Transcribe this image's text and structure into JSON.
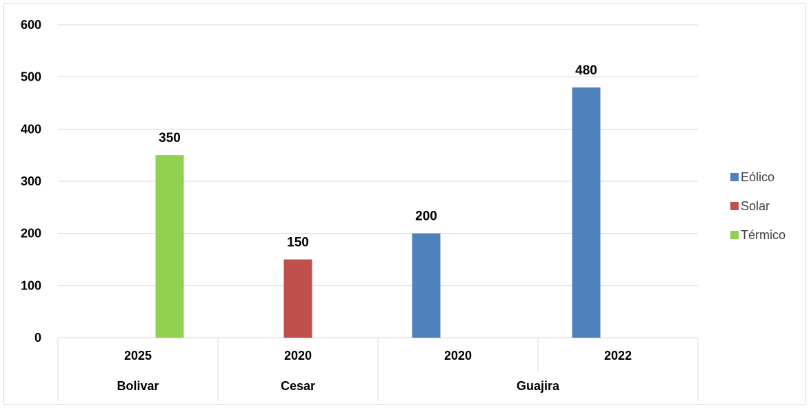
{
  "chart_data": {
    "type": "bar",
    "title": "",
    "xlabel": "",
    "ylabel": "",
    "ylim": [
      0,
      600
    ],
    "yticks": [
      0,
      100,
      200,
      300,
      400,
      500,
      600
    ],
    "grid": true,
    "legend_position": "right",
    "groups": [
      {
        "label": "Bolivar",
        "categories": [
          "2025"
        ]
      },
      {
        "label": "Cesar",
        "categories": [
          "2020"
        ]
      },
      {
        "label": "Guajira",
        "categories": [
          "2020",
          "2022"
        ]
      }
    ],
    "categories": [
      "2025",
      "2020",
      "2020",
      "2022"
    ],
    "series": [
      {
        "name": "Eólico",
        "color": "#4f81bd",
        "values": [
          null,
          null,
          200,
          480
        ]
      },
      {
        "name": "Solar",
        "color": "#c0504d",
        "values": [
          null,
          150,
          null,
          null
        ]
      },
      {
        "name": "Térmico",
        "color": "#92d050",
        "values": [
          350,
          null,
          null,
          null
        ]
      }
    ]
  }
}
